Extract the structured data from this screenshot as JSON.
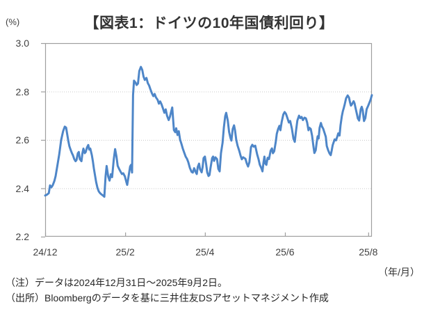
{
  "figure": {
    "title": "【図表1：ドイツの10年国債利回り】",
    "y_unit_label": "(%)",
    "x_unit_label": "（年/月）",
    "notes": [
      "（注）データは2024年12月31日～2025年9月2日。",
      "（出所）Bloombergのデータを基に三井住友DSアセットマネジメント作成"
    ]
  },
  "chart_data": {
    "type": "line",
    "title": "ドイツの10年国債利回り",
    "xlabel": "年/月",
    "ylabel": "%",
    "grid": "horizontal dotted gridlines at 2.4, 2.6, 2.8; closed gray plot border; no legend",
    "date_range": "2024/12/31 - 2025/9/2 (daily)",
    "colors": {
      "line": "#4e86c8",
      "border": "#9e9e9e",
      "grid": "#c8c8c8",
      "axis_text": "#404040",
      "title_text": "#333333"
    },
    "y_axis": {
      "min": 2.2,
      "max": 3.0,
      "ticks": [
        {
          "label": "3.0",
          "value": 3.0
        },
        {
          "label": "2.8",
          "value": 2.8
        },
        {
          "label": "2.6",
          "value": 2.6
        },
        {
          "label": "2.4",
          "value": 2.4
        },
        {
          "label": "2.2",
          "value": 2.2
        }
      ],
      "gridlines": [
        2.8,
        2.6,
        2.4
      ]
    },
    "x_axis": {
      "ticks": [
        {
          "label": "24/12",
          "pos": 0.0
        },
        {
          "label": "25/2",
          "pos": 0.245
        },
        {
          "label": "25/4",
          "pos": 0.489
        },
        {
          "label": "25/6",
          "pos": 0.734
        },
        {
          "label": "25/8",
          "pos": 0.989
        }
      ],
      "pos_meaning": "fraction of plot width; 0 = 2024/12/31, 1 = 2025/9/2"
    },
    "series": [
      {
        "name": "ドイツ10年国債利回り（%）",
        "points": [
          [
            0.0,
            2.37
          ],
          [
            0.006,
            2.374
          ],
          [
            0.011,
            2.38
          ],
          [
            0.015,
            2.412
          ],
          [
            0.019,
            2.404
          ],
          [
            0.023,
            2.412
          ],
          [
            0.028,
            2.43
          ],
          [
            0.032,
            2.45
          ],
          [
            0.038,
            2.5
          ],
          [
            0.043,
            2.54
          ],
          [
            0.049,
            2.6
          ],
          [
            0.055,
            2.636
          ],
          [
            0.06,
            2.655
          ],
          [
            0.064,
            2.651
          ],
          [
            0.068,
            2.618
          ],
          [
            0.071,
            2.594
          ],
          [
            0.074,
            2.574
          ],
          [
            0.079,
            2.555
          ],
          [
            0.082,
            2.545
          ],
          [
            0.085,
            2.536
          ],
          [
            0.089,
            2.521
          ],
          [
            0.093,
            2.512
          ],
          [
            0.096,
            2.517
          ],
          [
            0.1,
            2.545
          ],
          [
            0.103,
            2.55
          ],
          [
            0.106,
            2.521
          ],
          [
            0.111,
            2.512
          ],
          [
            0.114,
            2.545
          ],
          [
            0.117,
            2.564
          ],
          [
            0.121,
            2.545
          ],
          [
            0.124,
            2.55
          ],
          [
            0.128,
            2.569
          ],
          [
            0.132,
            2.579
          ],
          [
            0.135,
            2.56
          ],
          [
            0.138,
            2.564
          ],
          [
            0.143,
            2.536
          ],
          [
            0.146,
            2.512
          ],
          [
            0.149,
            2.483
          ],
          [
            0.153,
            2.45
          ],
          [
            0.156,
            2.426
          ],
          [
            0.16,
            2.402
          ],
          [
            0.164,
            2.387
          ],
          [
            0.168,
            2.38
          ],
          [
            0.172,
            2.375
          ],
          [
            0.177,
            2.37
          ],
          [
            0.181,
            2.365
          ],
          [
            0.185,
            2.45
          ],
          [
            0.188,
            2.492
          ],
          [
            0.193,
            2.448
          ],
          [
            0.197,
            2.432
          ],
          [
            0.201,
            2.458
          ],
          [
            0.205,
            2.446
          ],
          [
            0.21,
            2.52
          ],
          [
            0.214,
            2.562
          ],
          [
            0.218,
            2.532
          ],
          [
            0.222,
            2.493
          ],
          [
            0.227,
            2.478
          ],
          [
            0.231,
            2.468
          ],
          [
            0.235,
            2.459
          ],
          [
            0.239,
            2.462
          ],
          [
            0.244,
            2.449
          ],
          [
            0.248,
            2.428
          ],
          [
            0.251,
            2.414
          ],
          [
            0.255,
            2.448
          ],
          [
            0.26,
            2.49
          ],
          [
            0.263,
            2.497
          ],
          [
            0.266,
            2.465
          ],
          [
            0.269,
            2.785
          ],
          [
            0.272,
            2.845
          ],
          [
            0.277,
            2.836
          ],
          [
            0.28,
            2.827
          ],
          [
            0.284,
            2.833
          ],
          [
            0.288,
            2.885
          ],
          [
            0.293,
            2.902
          ],
          [
            0.297,
            2.89
          ],
          [
            0.301,
            2.862
          ],
          [
            0.305,
            2.848
          ],
          [
            0.31,
            2.856
          ],
          [
            0.314,
            2.835
          ],
          [
            0.318,
            2.825
          ],
          [
            0.322,
            2.81
          ],
          [
            0.327,
            2.792
          ],
          [
            0.331,
            2.781
          ],
          [
            0.335,
            2.79
          ],
          [
            0.339,
            2.776
          ],
          [
            0.344,
            2.766
          ],
          [
            0.348,
            2.75
          ],
          [
            0.352,
            2.759
          ],
          [
            0.356,
            2.748
          ],
          [
            0.361,
            2.728
          ],
          [
            0.365,
            2.712
          ],
          [
            0.369,
            2.726
          ],
          [
            0.373,
            2.7
          ],
          [
            0.378,
            2.682
          ],
          [
            0.382,
            2.696
          ],
          [
            0.385,
            2.714
          ],
          [
            0.389,
            2.734
          ],
          [
            0.394,
            2.641
          ],
          [
            0.398,
            2.632
          ],
          [
            0.401,
            2.648
          ],
          [
            0.405,
            2.62
          ],
          [
            0.409,
            2.636
          ],
          [
            0.413,
            2.601
          ],
          [
            0.417,
            2.584
          ],
          [
            0.421,
            2.565
          ],
          [
            0.426,
            2.546
          ],
          [
            0.43,
            2.531
          ],
          [
            0.434,
            2.522
          ],
          [
            0.438,
            2.508
          ],
          [
            0.443,
            2.484
          ],
          [
            0.448,
            2.468
          ],
          [
            0.452,
            2.465
          ],
          [
            0.456,
            2.483
          ],
          [
            0.461,
            2.466
          ],
          [
            0.464,
            2.459
          ],
          [
            0.467,
            2.488
          ],
          [
            0.471,
            2.502
          ],
          [
            0.474,
            2.479
          ],
          [
            0.479,
            2.466
          ],
          [
            0.482,
            2.488
          ],
          [
            0.485,
            2.525
          ],
          [
            0.489,
            2.531
          ],
          [
            0.493,
            2.497
          ],
          [
            0.496,
            2.466
          ],
          [
            0.5,
            2.451
          ],
          [
            0.503,
            2.455
          ],
          [
            0.506,
            2.483
          ],
          [
            0.511,
            2.525
          ],
          [
            0.514,
            2.531
          ],
          [
            0.517,
            2.513
          ],
          [
            0.521,
            2.528
          ],
          [
            0.526,
            2.521
          ],
          [
            0.53,
            2.48
          ],
          [
            0.534,
            2.47
          ],
          [
            0.538,
            2.545
          ],
          [
            0.543,
            2.588
          ],
          [
            0.547,
            2.652
          ],
          [
            0.551,
            2.698
          ],
          [
            0.554,
            2.712
          ],
          [
            0.559,
            2.68
          ],
          [
            0.563,
            2.633
          ],
          [
            0.567,
            2.609
          ],
          [
            0.57,
            2.597
          ],
          [
            0.574,
            2.645
          ],
          [
            0.578,
            2.66
          ],
          [
            0.581,
            2.64
          ],
          [
            0.585,
            2.6
          ],
          [
            0.589,
            2.576
          ],
          [
            0.594,
            2.555
          ],
          [
            0.598,
            2.535
          ],
          [
            0.602,
            2.52
          ],
          [
            0.606,
            2.528
          ],
          [
            0.613,
            2.522
          ],
          [
            0.617,
            2.503
          ],
          [
            0.621,
            2.49
          ],
          [
            0.625,
            2.508
          ],
          [
            0.63,
            2.57
          ],
          [
            0.634,
            2.58
          ],
          [
            0.638,
            2.572
          ],
          [
            0.643,
            2.576
          ],
          [
            0.649,
            2.54
          ],
          [
            0.653,
            2.521
          ],
          [
            0.657,
            2.497
          ],
          [
            0.662,
            2.483
          ],
          [
            0.665,
            2.47
          ],
          [
            0.668,
            2.505
          ],
          [
            0.671,
            2.531
          ],
          [
            0.674,
            2.502
          ],
          [
            0.677,
            2.497
          ],
          [
            0.681,
            2.526
          ],
          [
            0.685,
            2.521
          ],
          [
            0.69,
            2.555
          ],
          [
            0.694,
            2.565
          ],
          [
            0.697,
            2.545
          ],
          [
            0.701,
            2.553
          ],
          [
            0.706,
            2.593
          ],
          [
            0.709,
            2.625
          ],
          [
            0.713,
            2.645
          ],
          [
            0.717,
            2.658
          ],
          [
            0.72,
            2.64
          ],
          [
            0.724,
            2.675
          ],
          [
            0.729,
            2.705
          ],
          [
            0.733,
            2.715
          ],
          [
            0.737,
            2.708
          ],
          [
            0.741,
            2.692
          ],
          [
            0.746,
            2.672
          ],
          [
            0.75,
            2.678
          ],
          [
            0.755,
            2.647
          ],
          [
            0.76,
            2.605
          ],
          [
            0.764,
            2.592
          ],
          [
            0.768,
            2.64
          ],
          [
            0.772,
            2.68
          ],
          [
            0.777,
            2.7
          ],
          [
            0.781,
            2.69
          ],
          [
            0.785,
            2.695
          ],
          [
            0.789,
            2.682
          ],
          [
            0.794,
            2.692
          ],
          [
            0.798,
            2.689
          ],
          [
            0.802,
            2.672
          ],
          [
            0.806,
            2.64
          ],
          [
            0.809,
            2.65
          ],
          [
            0.813,
            2.645
          ],
          [
            0.817,
            2.617
          ],
          [
            0.821,
            2.574
          ],
          [
            0.824,
            2.546
          ],
          [
            0.828,
            2.557
          ],
          [
            0.831,
            2.59
          ],
          [
            0.834,
            2.615
          ],
          [
            0.837,
            2.606
          ],
          [
            0.84,
            2.65
          ],
          [
            0.844,
            2.67
          ],
          [
            0.847,
            2.656
          ],
          [
            0.851,
            2.646
          ],
          [
            0.855,
            2.63
          ],
          [
            0.859,
            2.613
          ],
          [
            0.862,
            2.575
          ],
          [
            0.866,
            2.558
          ],
          [
            0.87,
            2.545
          ],
          [
            0.874,
            2.537
          ],
          [
            0.877,
            2.556
          ],
          [
            0.88,
            2.578
          ],
          [
            0.883,
            2.59
          ],
          [
            0.886,
            2.602
          ],
          [
            0.89,
            2.598
          ],
          [
            0.894,
            2.613
          ],
          [
            0.897,
            2.627
          ],
          [
            0.901,
            2.618
          ],
          [
            0.904,
            2.66
          ],
          [
            0.908,
            2.698
          ],
          [
            0.911,
            2.718
          ],
          [
            0.914,
            2.732
          ],
          [
            0.917,
            2.748
          ],
          [
            0.921,
            2.772
          ],
          [
            0.926,
            2.784
          ],
          [
            0.93,
            2.775
          ],
          [
            0.933,
            2.756
          ],
          [
            0.936,
            2.742
          ],
          [
            0.939,
            2.747
          ],
          [
            0.944,
            2.76
          ],
          [
            0.947,
            2.751
          ],
          [
            0.95,
            2.732
          ],
          [
            0.954,
            2.708
          ],
          [
            0.957,
            2.689
          ],
          [
            0.961,
            2.68
          ],
          [
            0.963,
            2.698
          ],
          [
            0.966,
            2.727
          ],
          [
            0.969,
            2.737
          ],
          [
            0.972,
            2.723
          ],
          [
            0.976,
            2.678
          ],
          [
            0.98,
            2.69
          ],
          [
            0.984,
            2.727
          ],
          [
            0.989,
            2.742
          ],
          [
            0.992,
            2.752
          ],
          [
            0.996,
            2.766
          ],
          [
            1.0,
            2.785
          ]
        ]
      }
    ]
  }
}
